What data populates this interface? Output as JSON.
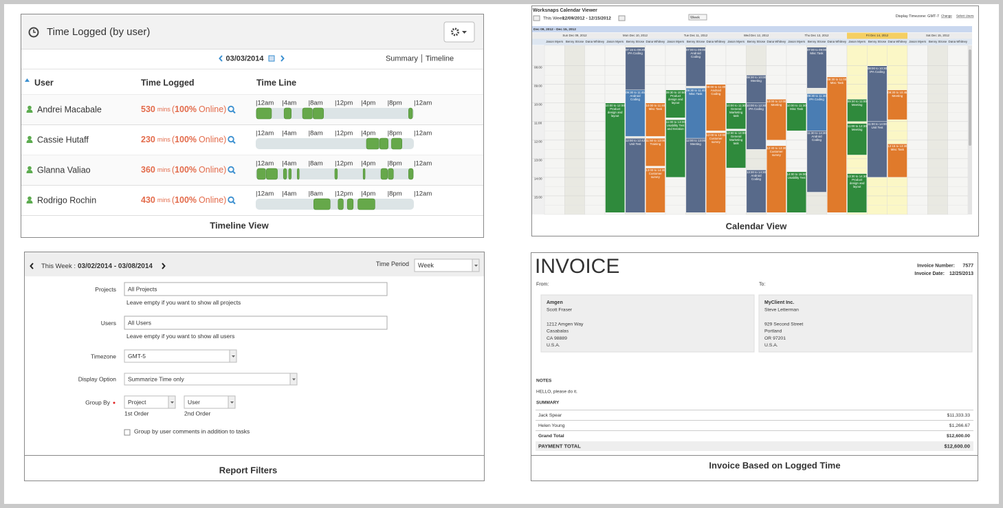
{
  "timeline_view": {
    "title": "Time Logged (by user)",
    "date": "03/03/2014",
    "links": [
      "Summary",
      "Timeline"
    ],
    "columns": [
      "User",
      "Time Logged",
      "Time Line"
    ],
    "hours": [
      {
        "value": 0,
        "label": "|12am"
      },
      {
        "value": 4,
        "label": "|4am"
      },
      {
        "value": 8,
        "label": "|8am"
      },
      {
        "value": 12,
        "label": "|12pm"
      },
      {
        "value": 16,
        "label": "|4pm"
      },
      {
        "value": 20,
        "label": "|8pm"
      },
      {
        "value": 24,
        "label": "|12am"
      }
    ],
    "range": [
      0,
      24
    ],
    "unit": "mins",
    "open": "(",
    "online": "Online)",
    "rows": [
      {
        "name": "Andrei Macabale",
        "minutes": 530,
        "percent": "100%",
        "segments": [
          [
            0.1,
            2.5
          ],
          [
            4.3,
            5.5
          ],
          [
            7.1,
            8.7
          ],
          [
            8.7,
            10.4
          ],
          [
            23.2,
            23.9
          ]
        ]
      },
      {
        "name": "Cassie Hutaff",
        "minutes": 230,
        "percent": "100%",
        "segments": [
          [
            16.8,
            18.8
          ],
          [
            18.8,
            20.2
          ],
          [
            20.6,
            22.3
          ]
        ]
      },
      {
        "name": "Glanna Valiao",
        "minutes": 360,
        "percent": "100%",
        "segments": [
          [
            0.2,
            1.6
          ],
          [
            1.6,
            3.4
          ],
          [
            4.2,
            4.8
          ],
          [
            5.0,
            5.5
          ],
          [
            6.3,
            6.7
          ],
          [
            12.0,
            12.5
          ],
          [
            16.3,
            16.7
          ],
          [
            19.0,
            20.1
          ],
          [
            20.1,
            21.0
          ],
          [
            23.2,
            24.0
          ]
        ]
      },
      {
        "name": "Rodrigo Rochin",
        "minutes": 430,
        "percent": "100%",
        "segments": [
          [
            8.8,
            11.4
          ],
          [
            12.5,
            13.4
          ],
          [
            13.9,
            14.9
          ],
          [
            15.5,
            18.2
          ]
        ]
      }
    ],
    "caption": "Timeline View"
  },
  "calendar_view": {
    "title": "Worksnaps Calendar Viewer",
    "week_label": "This Week:",
    "week": "12/09/2012 - 12/15/2012",
    "view": "Week",
    "timezone": "Display Timezone: GMT-7",
    "links": [
      "Change",
      "Select Users"
    ],
    "range": "Dec 09, 2012 - Dec 15, 2012",
    "days": [
      "Sun Dec 09, 2012",
      "Mon Dec 10, 2012",
      "Tue Dec 11, 2012",
      "Wed Dec 12, 2012",
      "Thu Dec 13, 2012",
      "Fri Dec 14, 2012",
      "Sat Dec 15, 2012"
    ],
    "highlight_day": 5,
    "users": [
      "Jason Myers",
      "Benny Strose",
      "Dana Whitney"
    ],
    "hour_range": [
      6.9,
      16
    ],
    "hours": [
      {
        "value": 8,
        "label": "08:00"
      },
      {
        "value": 9,
        "label": "09:00"
      },
      {
        "value": 10,
        "label": "10:00"
      },
      {
        "value": 11,
        "label": "11:00"
      },
      {
        "value": 12,
        "label": "12:00"
      },
      {
        "value": 13,
        "label": "13:00"
      },
      {
        "value": 14,
        "label": "14:00"
      },
      {
        "value": 15,
        "label": "15:00"
      }
    ],
    "events": [
      {
        "day": 1,
        "user": 0,
        "start": 10,
        "end": 15.9,
        "color": "#2f8a3c",
        "time": "10:00 to 12:00",
        "label": "Product design and layout"
      },
      {
        "day": 1,
        "user": 1,
        "start": 7,
        "end": 9.3,
        "color": "#586a8a",
        "time": "07:15 to 09:20",
        "label": "IPA Coding"
      },
      {
        "day": 1,
        "user": 1,
        "start": 9.3,
        "end": 11.8,
        "color": "#4a7db3",
        "time": "09:30 to 11:45",
        "label": "Android Coding"
      },
      {
        "day": 1,
        "user": 1,
        "start": 11.9,
        "end": 15.9,
        "color": "#586a8a",
        "time": "12:00 to 12:42",
        "label": "Unit Test"
      },
      {
        "day": 1,
        "user": 2,
        "start": 10,
        "end": 11.8,
        "color": "#e07a2b",
        "time": "10:00 to 11:40",
        "label": "Misc Task"
      },
      {
        "day": 1,
        "user": 2,
        "start": 11.9,
        "end": 13.4,
        "color": "#e07a2b",
        "time": "11:50 to 13:00",
        "label": "Training"
      },
      {
        "day": 1,
        "user": 2,
        "start": 13.5,
        "end": 15.9,
        "color": "#e07a2b",
        "time": "13:00 to 14:30",
        "label": "Customer survey"
      },
      {
        "day": 2,
        "user": 0,
        "start": 9.3,
        "end": 10.8,
        "color": "#2f8a3c",
        "time": "09:30 to 10:50",
        "label": "Product design and layout"
      },
      {
        "day": 2,
        "user": 0,
        "start": 10.9,
        "end": 14,
        "color": "#2f8a3c",
        "time": "11:00 to 13:00",
        "label": "Usability Test and Iteration"
      },
      {
        "day": 2,
        "user": 1,
        "start": 7,
        "end": 9.1,
        "color": "#586a8a",
        "time": "07:00 to 09:00",
        "label": "Android Coding"
      },
      {
        "day": 2,
        "user": 1,
        "start": 9.2,
        "end": 11.9,
        "color": "#4a7db3",
        "time": "09:30 to 11:40",
        "label": "Misc Task"
      },
      {
        "day": 2,
        "user": 1,
        "start": 11.9,
        "end": 15.9,
        "color": "#586a8a",
        "time": "12:00 to 13:00",
        "label": "Meeting"
      },
      {
        "day": 2,
        "user": 2,
        "start": 9,
        "end": 11.5,
        "color": "#e07a2b",
        "time": "09:00 to 11:30",
        "label": "Android Coding"
      },
      {
        "day": 2,
        "user": 2,
        "start": 11.6,
        "end": 15.9,
        "color": "#e07a2b",
        "time": "12:00 to 13:00",
        "label": "Customer survey"
      },
      {
        "day": 3,
        "user": 0,
        "start": 10,
        "end": 11.4,
        "color": "#2f8a3c",
        "time": "10:00 to 11:30",
        "label": "General Marketing task"
      },
      {
        "day": 3,
        "user": 0,
        "start": 11.5,
        "end": 13.5,
        "color": "#2f8a3c",
        "time": "12:00 to 13:00",
        "label": "General Marketing task"
      },
      {
        "day": 3,
        "user": 1,
        "start": 8.5,
        "end": 10,
        "color": "#586a8a",
        "time": "08:30 to 10:00",
        "label": "Meeting"
      },
      {
        "day": 3,
        "user": 1,
        "start": 10,
        "end": 12.5,
        "color": "#586a8a",
        "time": "10:00 to 12:30",
        "label": "IPA Coding"
      },
      {
        "day": 3,
        "user": 1,
        "start": 13.6,
        "end": 15.9,
        "color": "#586a8a",
        "time": "13:30 to 14:30",
        "label": "Android Coding"
      },
      {
        "day": 3,
        "user": 2,
        "start": 9.8,
        "end": 12,
        "color": "#e07a2b",
        "time": "10:00 to 12:00",
        "label": "Meeting"
      },
      {
        "day": 3,
        "user": 2,
        "start": 12.3,
        "end": 15.9,
        "color": "#e07a2b",
        "time": "12:30 to 13:30",
        "label": "Customer survey"
      },
      {
        "day": 4,
        "user": 0,
        "start": 10,
        "end": 11.5,
        "color": "#2f8a3c",
        "time": "10:00 to 11:30",
        "label": "Misc Task"
      },
      {
        "day": 4,
        "user": 0,
        "start": 13.7,
        "end": 15.9,
        "color": "#2f8a3c",
        "time": "14:00 to 15:00",
        "label": "Usability Test"
      },
      {
        "day": 4,
        "user": 1,
        "start": 7,
        "end": 9.2,
        "color": "#586a8a",
        "time": "07:00 to 09:00",
        "label": "Misc Task"
      },
      {
        "day": 4,
        "user": 1,
        "start": 9.5,
        "end": 11.5,
        "color": "#4a7db3",
        "time": "09:30 to 11:30",
        "label": "IPA Coding"
      },
      {
        "day": 4,
        "user": 1,
        "start": 11.5,
        "end": 14.8,
        "color": "#586a8a",
        "time": "11:30 to 14:30",
        "label": "Android Coding"
      },
      {
        "day": 4,
        "user": 2,
        "start": 8.6,
        "end": 15.9,
        "color": "#e07a2b",
        "time": "08:30 to 11:00",
        "label": "Misc Task"
      },
      {
        "day": 5,
        "user": 0,
        "start": 9.8,
        "end": 11,
        "color": "#2f8a3c",
        "time": "09:30 to 11:00",
        "label": "Meeting"
      },
      {
        "day": 5,
        "user": 0,
        "start": 11.1,
        "end": 12.8,
        "color": "#2f8a3c",
        "time": "11:00 to 12:30",
        "label": "Meeting"
      },
      {
        "day": 5,
        "user": 0,
        "start": 13.8,
        "end": 15.9,
        "color": "#2f8a3c",
        "time": "13:30 to 14:30",
        "label": "Product design and layout"
      },
      {
        "day": 5,
        "user": 1,
        "start": 8,
        "end": 11,
        "color": "#586a8a",
        "time": "08:00 to 10:30",
        "label": "IPA Coding"
      },
      {
        "day": 5,
        "user": 1,
        "start": 11,
        "end": 14,
        "color": "#586a8a",
        "time": "11:00 to 14:00",
        "label": "Unit Test"
      },
      {
        "day": 5,
        "user": 2,
        "start": 9.3,
        "end": 10.9,
        "color": "#e07a2b",
        "time": "09:30 to 10:45",
        "label": "Meeting"
      },
      {
        "day": 5,
        "user": 2,
        "start": 12.2,
        "end": 14,
        "color": "#e07a2b",
        "time": "12:15 to 13:30",
        "label": "Misc Task"
      }
    ],
    "caption": "Calendar View"
  },
  "report_filters": {
    "week_label": "This Week :",
    "week": "03/02/2014 - 03/08/2014",
    "period_label": "Time Period",
    "period": "Week",
    "fields": [
      {
        "label": "Projects",
        "placeholder": "All Projects",
        "hint": "Leave empty if you want to show all projects"
      },
      {
        "label": "Users",
        "placeholder": "All Users",
        "hint": "Leave empty if you want to show all users"
      }
    ],
    "timezone_label": "Timezone",
    "timezone": "GMT-5",
    "display_label": "Display Option",
    "display": "Summarize Time only",
    "group_label": "Group By",
    "group": [
      {
        "value": "Project",
        "order": "1st Order"
      },
      {
        "value": "User",
        "order": "2nd Order"
      }
    ],
    "checkbox": "Group by user comments in addition to tasks",
    "caption": "Report Filters"
  },
  "invoice": {
    "title": "INVOICE",
    "number_label": "Invoice Number:",
    "number": "7577",
    "date_label": "Invoice Date:",
    "date": "12/25/2013",
    "from_label": "From:",
    "to_label": "To:",
    "from": {
      "company": "Amgen",
      "contact": "Scott Fraser",
      "address": [
        "1212 Amgen Way",
        "Casabalas",
        "CA 98889",
        "U.S.A."
      ]
    },
    "to": {
      "company": "MyClient Inc.",
      "contact": "Steve Letterman",
      "address": [
        "929 Second Street",
        "Portland",
        "OR 97201",
        "U.S.A."
      ]
    },
    "notes_label": "NOTES",
    "notes": "HELLO, please do it.",
    "summary_label": "SUMMARY",
    "items": [
      {
        "name": "Jack Spear",
        "amount": "$11,333.33"
      },
      {
        "name": "Helen Young",
        "amount": "$1,266.67"
      }
    ],
    "grand_label": "Grand Total",
    "grand": "$12,600.00",
    "payment_label": "PAYMENT TOTAL",
    "payment": "$12,600.00",
    "caption": "Invoice Based on Logged Time"
  }
}
